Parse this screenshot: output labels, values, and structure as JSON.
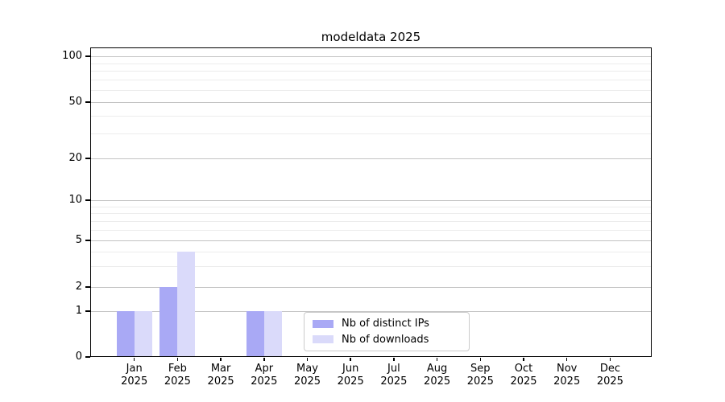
{
  "title": "modeldata 2025",
  "chart_data": {
    "type": "bar",
    "title": "modeldata 2025",
    "xlabel": "",
    "ylabel": "",
    "yscale": "log-like",
    "ylim": [
      0,
      115
    ],
    "ytick_values": [
      0,
      1,
      2,
      5,
      10,
      20,
      50,
      100
    ],
    "ytick_labels": [
      "0",
      "1",
      "2",
      "5",
      "10",
      "20",
      "50",
      "100"
    ],
    "minor_gridline_values": [
      3,
      4,
      6,
      7,
      8,
      9,
      30,
      40,
      60,
      70,
      80,
      90
    ],
    "grid": "horizontal major and minor gridlines",
    "legend_position": "bottom center inside plot",
    "categories": [
      {
        "month": "Jan",
        "year": "2025"
      },
      {
        "month": "Feb",
        "year": "2025"
      },
      {
        "month": "Mar",
        "year": "2025"
      },
      {
        "month": "Apr",
        "year": "2025"
      },
      {
        "month": "May",
        "year": "2025"
      },
      {
        "month": "Jun",
        "year": "2025"
      },
      {
        "month": "Jul",
        "year": "2025"
      },
      {
        "month": "Aug",
        "year": "2025"
      },
      {
        "month": "Sep",
        "year": "2025"
      },
      {
        "month": "Oct",
        "year": "2025"
      },
      {
        "month": "Nov",
        "year": "2025"
      },
      {
        "month": "Dec",
        "year": "2025"
      }
    ],
    "series": [
      {
        "name": "Nb of distinct IPs",
        "color": "#a9a9f5",
        "values": [
          1,
          2,
          0,
          1,
          0,
          0,
          0,
          0,
          0,
          0,
          0,
          0
        ]
      },
      {
        "name": "Nb of downloads",
        "color": "#dadafa",
        "values": [
          1,
          4,
          0,
          1,
          0,
          0,
          0,
          0,
          0,
          0,
          0,
          0
        ]
      }
    ]
  },
  "colors": {
    "grid_major": "#c3c3c3",
    "grid_minor": "#ececec",
    "spine": "#000000",
    "legend_border": "#cbcbcb",
    "text": "#000000"
  }
}
